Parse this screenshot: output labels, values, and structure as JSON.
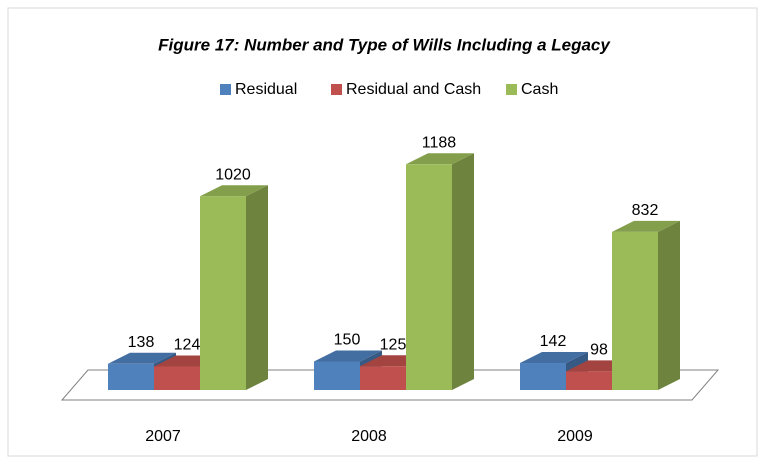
{
  "chart_data": {
    "type": "bar3d",
    "title": "Figure 17: Number and Type of Wills Including a Legacy",
    "categories": [
      "2007",
      "2008",
      "2009"
    ],
    "series": [
      {
        "name": "Residual",
        "color": "#4f81bd",
        "values": [
          138,
          150,
          142
        ]
      },
      {
        "name": "Residual and Cash",
        "color": "#c0504d",
        "values": [
          124,
          125,
          98
        ]
      },
      {
        "name": "Cash",
        "color": "#9bbb59",
        "values": [
          1020,
          1188,
          832
        ]
      }
    ],
    "legend": "top"
  }
}
